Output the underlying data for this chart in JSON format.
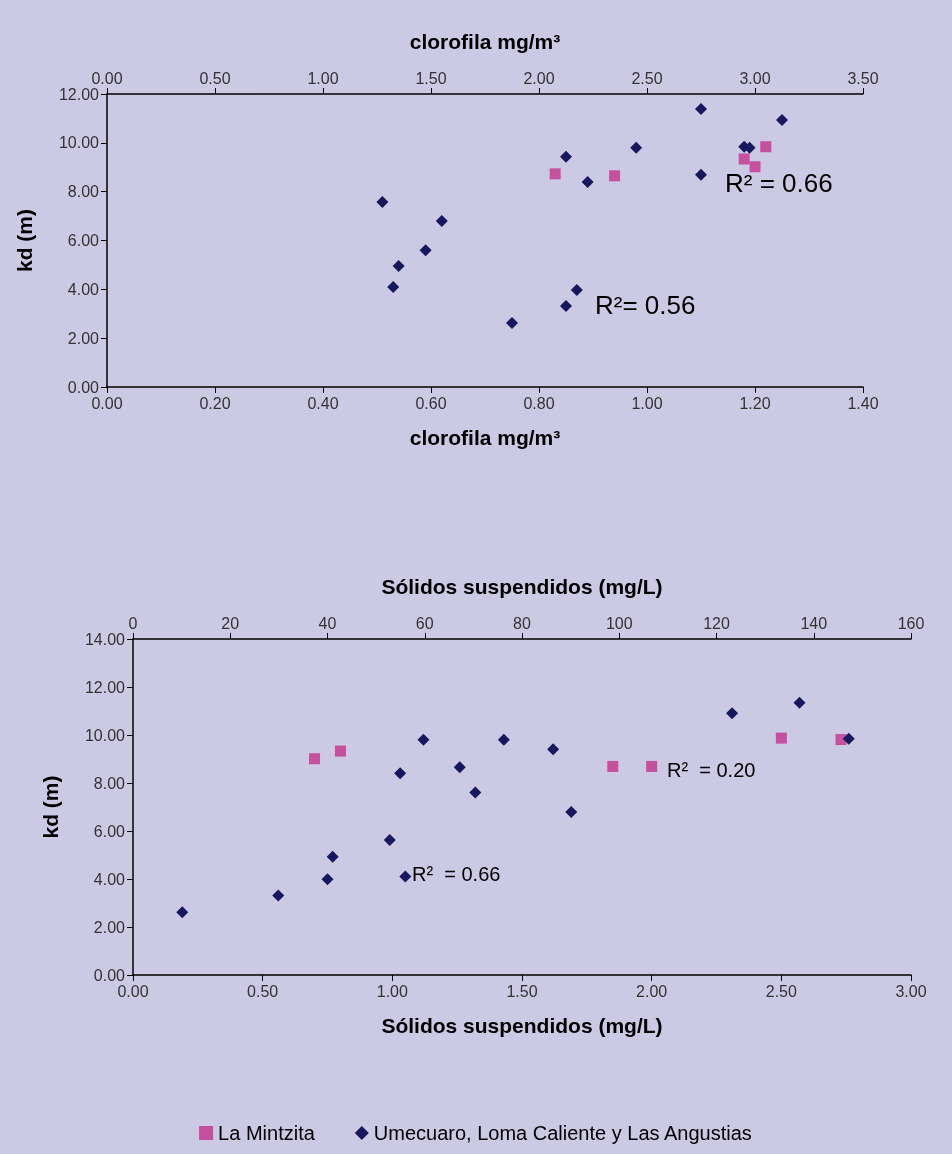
{
  "chart_data": [
    {
      "type": "scatter",
      "xlabel": "clorofila mg/m³",
      "x2label": "clorofila mg/m³",
      "ylabel": "kd (m)",
      "xlim": [
        0,
        1.4
      ],
      "xticks": [
        {
          "value": 0,
          "label": "0.00"
        },
        {
          "value": 0.2,
          "label": "0.20"
        },
        {
          "value": 0.4,
          "label": "0.40"
        },
        {
          "value": 0.6,
          "label": "0.60"
        },
        {
          "value": 0.8,
          "label": "0.80"
        },
        {
          "value": 1.0,
          "label": "1.00"
        },
        {
          "value": 1.2,
          "label": "1.20"
        },
        {
          "value": 1.4,
          "label": "1.40"
        }
      ],
      "x2lim": [
        0,
        3.5
      ],
      "x2ticks": [
        {
          "value": 0,
          "label": "0.00"
        },
        {
          "value": 0.5,
          "label": "0.50"
        },
        {
          "value": 1.0,
          "label": "1.00"
        },
        {
          "value": 1.5,
          "label": "1.50"
        },
        {
          "value": 2.0,
          "label": "2.00"
        },
        {
          "value": 2.5,
          "label": "2.50"
        },
        {
          "value": 3.0,
          "label": "3.00"
        },
        {
          "value": 3.5,
          "label": "3.50"
        }
      ],
      "ylim": [
        0,
        12
      ],
      "yticks": [
        {
          "value": 0,
          "label": "0.00"
        },
        {
          "value": 2,
          "label": "2.00"
        },
        {
          "value": 4,
          "label": "4.00"
        },
        {
          "value": 6,
          "label": "6.00"
        },
        {
          "value": 8,
          "label": "8.00"
        },
        {
          "value": 10,
          "label": "10.00"
        },
        {
          "value": 12,
          "label": "12.00"
        }
      ],
      "grid": false,
      "legend": false,
      "series": [
        {
          "color": "#c4509e",
          "marker": "square",
          "x": [
            0.83,
            0.94,
            1.18,
            1.2,
            1.22
          ],
          "values": [
            8.73,
            8.65,
            9.34,
            9.02,
            9.84
          ]
        },
        {
          "color": "#17175e",
          "marker": "diamond",
          "x": [
            0.51,
            0.53,
            0.54,
            0.59,
            0.62,
            0.75,
            0.85,
            0.89,
            0.85,
            0.87,
            0.98,
            1.1,
            1.1,
            1.18,
            1.19,
            1.25
          ],
          "values": [
            7.58,
            4.1,
            4.96,
            5.6,
            6.8,
            2.62,
            9.43,
            8.4,
            3.32,
            3.97,
            9.8,
            11.39,
            8.69,
            9.84,
            9.8,
            10.94
          ]
        }
      ],
      "annotations": [
        "R² = 0.66",
        "R²= 0.56"
      ]
    },
    {
      "type": "scatter",
      "xlabel": "Sólidos suspendidos (mg/L)",
      "x2label": "Sólidos suspendidos (mg/L)",
      "ylabel": "kd (m)",
      "xlim": [
        0,
        3
      ],
      "xticks": [
        {
          "value": 0,
          "label": "0.00"
        },
        {
          "value": 0.5,
          "label": "0.50"
        },
        {
          "value": 1.0,
          "label": "1.00"
        },
        {
          "value": 1.5,
          "label": "1.50"
        },
        {
          "value": 2.0,
          "label": "2.00"
        },
        {
          "value": 2.5,
          "label": "2.50"
        },
        {
          "value": 3.0,
          "label": "3.00"
        }
      ],
      "x2lim": [
        0,
        160
      ],
      "x2ticks": [
        0,
        20,
        40,
        60,
        80,
        100,
        120,
        140,
        160
      ],
      "ylim": [
        0,
        14
      ],
      "yticks": [
        {
          "value": 0,
          "label": "0.00"
        },
        {
          "value": 2,
          "label": "2.00"
        },
        {
          "value": 4,
          "label": "4.00"
        },
        {
          "value": 6,
          "label": "6.00"
        },
        {
          "value": 8,
          "label": "8.00"
        },
        {
          "value": 10,
          "label": "10.00"
        },
        {
          "value": 12,
          "label": "12.00"
        },
        {
          "value": 14,
          "label": "14.00"
        }
      ],
      "grid": false,
      "legend": "bottom",
      "series": [
        {
          "name": "La Mintzita",
          "color": "#c4509e",
          "marker": "square",
          "x": [
            0.7,
            0.8,
            1.85,
            2.0,
            2.5,
            2.73
          ],
          "values": [
            9.01,
            9.33,
            8.69,
            8.69,
            9.87,
            9.81
          ]
        },
        {
          "name": "Umecuaro, Loma Caliente y Las Angustias",
          "color": "#17175e",
          "marker": "diamond",
          "x": [
            0.19,
            0.56,
            0.75,
            0.77,
            0.99,
            1.03,
            1.05,
            1.12,
            1.26,
            1.32,
            1.43,
            1.62,
            1.69,
            2.31,
            2.57,
            2.76
          ],
          "values": [
            2.61,
            3.31,
            3.99,
            4.93,
            5.62,
            8.41,
            4.1,
            9.8,
            8.66,
            7.6,
            9.8,
            9.41,
            6.79,
            10.91,
            11.34,
            9.84
          ]
        }
      ],
      "annotations": [
        "R²  = 0.66",
        "R²  = 0.20"
      ]
    }
  ]
}
